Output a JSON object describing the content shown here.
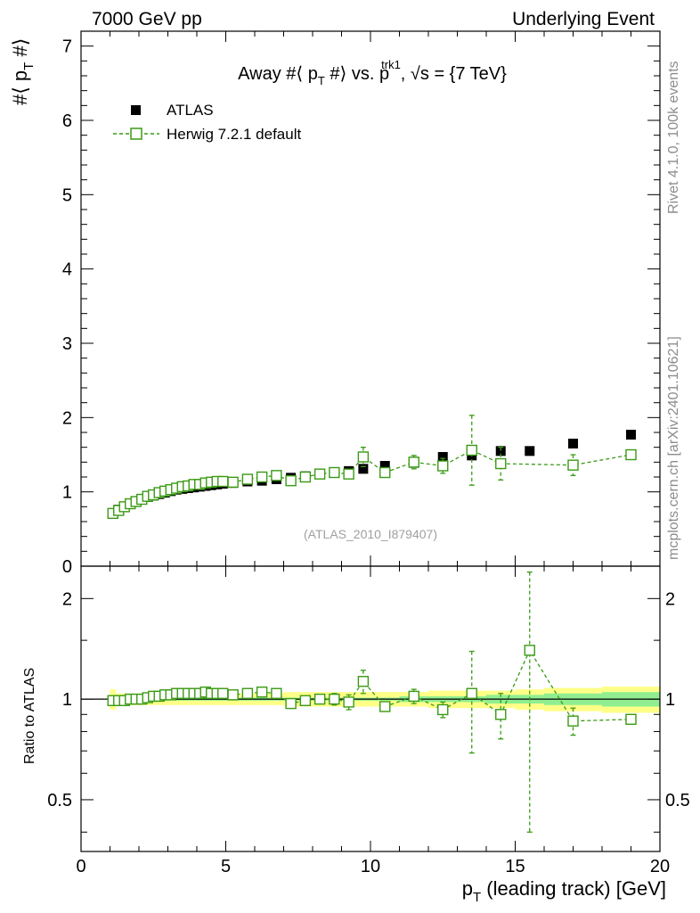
{
  "header": {
    "left": "7000 GeV pp",
    "right": "Underlying Event"
  },
  "side_labels": {
    "rivet": "Rivet 4.1.0,  100k events",
    "mcplots": "mcplots.cern.ch [arXiv:2401.10621]"
  },
  "colors": {
    "data": "#000000",
    "mc": "#3a9a14",
    "band_outer": "#ffff88",
    "band_inner": "#90ee90"
  },
  "chart_data": [
    {
      "type": "scatter",
      "panel": "main",
      "title": "Away #⟨ p_T #⟩ vs. p_T^trk1, √s = {7 TeV}",
      "title_parts": {
        "prefix": "Away #⟨ p",
        "sub_t": "T",
        "mid": " #⟩ vs. p",
        "sup": "trk1",
        "suffix": ", √s = {7 TeV}"
      },
      "ylabel": "#⟨ p_T #⟩",
      "ylabel_parts": {
        "prefix": "#⟨ p",
        "sub": "T",
        "suffix": " #⟩"
      },
      "xlim": [
        0,
        20
      ],
      "ylim": [
        0,
        7.2
      ],
      "yticks": [
        0,
        1,
        2,
        3,
        4,
        5,
        6,
        7
      ],
      "legend": [
        {
          "name": "ATLAS",
          "marker": "filled-square"
        },
        {
          "name": "Herwig 7.2.1 default",
          "marker": "open-square-dashed"
        }
      ],
      "watermark": "(ATLAS_2010_I879407)",
      "series": [
        {
          "name": "ATLAS",
          "x": [
            1.1,
            1.3,
            1.5,
            1.7,
            1.9,
            2.1,
            2.3,
            2.5,
            2.7,
            2.9,
            3.1,
            3.3,
            3.5,
            3.7,
            3.9,
            4.1,
            4.3,
            4.5,
            4.7,
            4.9,
            5.25,
            5.75,
            6.25,
            6.75,
            7.25,
            7.75,
            8.25,
            8.75,
            9.25,
            9.75,
            10.5,
            11.5,
            12.5,
            13.5,
            14.5,
            15.5,
            17.0,
            19.0
          ],
          "y": [
            0.71,
            0.76,
            0.8,
            0.84,
            0.87,
            0.9,
            0.93,
            0.95,
            0.97,
            0.99,
            1.01,
            1.03,
            1.04,
            1.05,
            1.06,
            1.07,
            1.08,
            1.09,
            1.1,
            1.11,
            1.12,
            1.14,
            1.15,
            1.17,
            1.19,
            1.21,
            1.24,
            1.26,
            1.28,
            1.31,
            1.35,
            1.39,
            1.47,
            1.49,
            1.55,
            1.55,
            1.65,
            1.77
          ]
        },
        {
          "name": "Herwig 7.2.1 default",
          "x": [
            1.1,
            1.3,
            1.5,
            1.7,
            1.9,
            2.1,
            2.3,
            2.5,
            2.7,
            2.9,
            3.1,
            3.3,
            3.5,
            3.7,
            3.9,
            4.1,
            4.3,
            4.5,
            4.7,
            4.9,
            5.25,
            5.75,
            6.25,
            6.75,
            7.25,
            7.75,
            8.25,
            8.75,
            9.25,
            9.75,
            10.5,
            11.5,
            12.5,
            13.5,
            14.5,
            17.0,
            19.0
          ],
          "y": [
            0.71,
            0.75,
            0.8,
            0.84,
            0.87,
            0.9,
            0.94,
            0.96,
            0.99,
            1.01,
            1.03,
            1.05,
            1.07,
            1.08,
            1.1,
            1.1,
            1.12,
            1.13,
            1.14,
            1.14,
            1.13,
            1.17,
            1.2,
            1.22,
            1.15,
            1.2,
            1.24,
            1.26,
            1.24,
            1.47,
            1.26,
            1.4,
            1.35,
            1.56,
            1.38,
            1.36,
            1.5
          ],
          "yerr": [
            0.01,
            0.01,
            0.01,
            0.01,
            0.01,
            0.01,
            0.01,
            0.01,
            0.01,
            0.01,
            0.01,
            0.01,
            0.01,
            0.01,
            0.01,
            0.01,
            0.01,
            0.02,
            0.02,
            0.02,
            0.02,
            0.02,
            0.02,
            0.03,
            0.03,
            0.03,
            0.04,
            0.05,
            0.06,
            0.13,
            0.06,
            0.09,
            0.1,
            0.47,
            0.22,
            0.14,
            0.05
          ]
        }
      ]
    },
    {
      "type": "scatter",
      "panel": "ratio",
      "ylabel": "Ratio to ATLAS",
      "xlabel": "p_T (leading track) [GeV]",
      "xlabel_parts": {
        "prefix": "p",
        "sub": "T",
        "suffix": " (leading track) [GeV]"
      },
      "xlim": [
        0,
        20
      ],
      "xticks": [
        0,
        5,
        10,
        15,
        20
      ],
      "ylim": [
        0.35,
        2.5
      ],
      "yscale": "log",
      "yticks": [
        0.5,
        1,
        2
      ],
      "band": {
        "x_edges": [
          1.0,
          1.2,
          1.4,
          1.6,
          1.8,
          2.0,
          2.2,
          2.4,
          2.6,
          2.8,
          3.0,
          3.2,
          3.4,
          3.6,
          3.8,
          4.0,
          4.2,
          4.4,
          4.6,
          4.8,
          5.0,
          5.5,
          6.0,
          6.5,
          7.0,
          7.5,
          8.0,
          8.5,
          9.0,
          9.5,
          10.0,
          11.0,
          12.0,
          13.0,
          14.0,
          15.0,
          16.0,
          18.0,
          20.0
        ],
        "outer": [
          0.07,
          0.04,
          0.04,
          0.04,
          0.04,
          0.04,
          0.04,
          0.04,
          0.04,
          0.04,
          0.04,
          0.04,
          0.04,
          0.04,
          0.04,
          0.04,
          0.04,
          0.04,
          0.04,
          0.04,
          0.04,
          0.04,
          0.04,
          0.04,
          0.05,
          0.05,
          0.05,
          0.05,
          0.05,
          0.05,
          0.05,
          0.05,
          0.06,
          0.06,
          0.06,
          0.07,
          0.08,
          0.09
        ],
        "inner": [
          0.02,
          0.01,
          0.01,
          0.01,
          0.01,
          0.01,
          0.01,
          0.01,
          0.01,
          0.01,
          0.01,
          0.01,
          0.01,
          0.01,
          0.01,
          0.01,
          0.01,
          0.01,
          0.01,
          0.01,
          0.01,
          0.01,
          0.01,
          0.01,
          0.01,
          0.01,
          0.01,
          0.01,
          0.01,
          0.01,
          0.01,
          0.02,
          0.02,
          0.02,
          0.03,
          0.03,
          0.04,
          0.05
        ]
      },
      "series": [
        {
          "name": "Herwig 7.2.1 default / ATLAS",
          "x": [
            1.1,
            1.3,
            1.5,
            1.7,
            1.9,
            2.1,
            2.3,
            2.5,
            2.7,
            2.9,
            3.1,
            3.3,
            3.5,
            3.7,
            3.9,
            4.1,
            4.3,
            4.5,
            4.7,
            4.9,
            5.25,
            5.75,
            6.25,
            6.75,
            7.25,
            7.75,
            8.25,
            8.75,
            9.25,
            9.75,
            10.5,
            11.5,
            12.5,
            13.5,
            14.5,
            15.5,
            17.0,
            19.0
          ],
          "y": [
            0.99,
            0.99,
            0.99,
            1.0,
            1.0,
            1.0,
            1.01,
            1.02,
            1.02,
            1.03,
            1.03,
            1.04,
            1.04,
            1.04,
            1.04,
            1.04,
            1.05,
            1.04,
            1.04,
            1.04,
            1.03,
            1.04,
            1.05,
            1.04,
            0.97,
            0.99,
            1.0,
            1.0,
            0.98,
            1.13,
            0.95,
            1.02,
            0.93,
            1.04,
            0.9,
            1.4,
            0.86,
            0.87
          ],
          "yerr": [
            0.02,
            0.01,
            0.01,
            0.01,
            0.01,
            0.01,
            0.01,
            0.01,
            0.01,
            0.01,
            0.01,
            0.01,
            0.01,
            0.01,
            0.01,
            0.01,
            0.01,
            0.01,
            0.01,
            0.01,
            0.01,
            0.01,
            0.01,
            0.02,
            0.02,
            0.02,
            0.03,
            0.04,
            0.05,
            0.09,
            0.03,
            0.05,
            0.05,
            0.35,
            0.14,
            1.0,
            0.08,
            0.02
          ]
        }
      ]
    }
  ]
}
